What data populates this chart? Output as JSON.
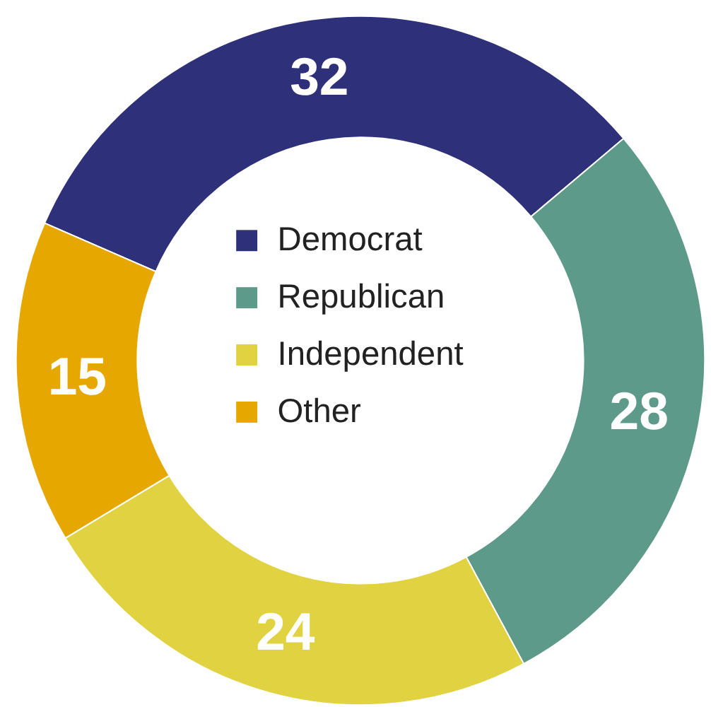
{
  "chart_data": {
    "type": "donut",
    "categories": [
      "Democrat",
      "Republican",
      "Independent",
      "Other"
    ],
    "values": [
      32,
      28,
      24,
      15
    ],
    "colors": [
      "#2e3179",
      "#5e9a8a",
      "#e0d240",
      "#e6a800"
    ],
    "data_labels": true,
    "legend": "center"
  }
}
